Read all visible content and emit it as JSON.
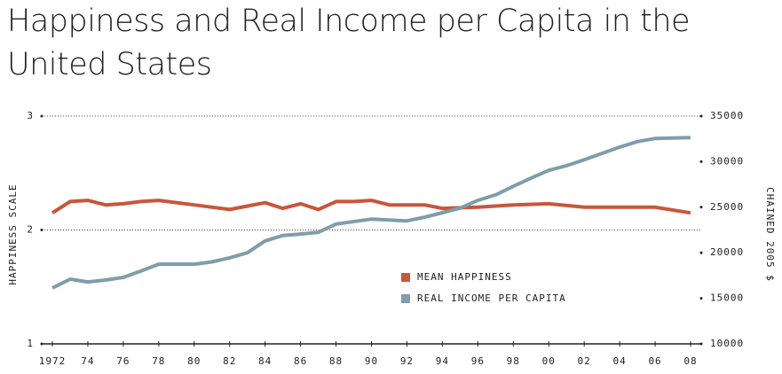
{
  "chart_data": {
    "type": "line",
    "title": "Happiness and Real Income per Capita in the United States",
    "ylabel": "HAPPINESS SCALE",
    "y2label": "CHAINED 2005 $",
    "xlim": [
      1971.4,
      2008.6
    ],
    "xticks": [
      1972,
      {
        "value": 1974,
        "label": "74"
      },
      {
        "value": 1976,
        "label": "76"
      },
      {
        "value": 1978,
        "label": "78"
      },
      {
        "value": 1980,
        "label": "80"
      },
      {
        "value": 1982,
        "label": "82"
      },
      {
        "value": 1984,
        "label": "84"
      },
      {
        "value": 1986,
        "label": "86"
      },
      {
        "value": 1988,
        "label": "88"
      },
      {
        "value": 1990,
        "label": "90"
      },
      {
        "value": 1992,
        "label": "92"
      },
      {
        "value": 1994,
        "label": "94"
      },
      {
        "value": 1996,
        "label": "96"
      },
      {
        "value": 1998,
        "label": "98"
      },
      {
        "value": 2000,
        "label": "00"
      },
      {
        "value": 2002,
        "label": "02"
      },
      {
        "value": 2004,
        "label": "04"
      },
      {
        "value": 2006,
        "label": "06"
      },
      {
        "value": 2008,
        "label": "08"
      }
    ],
    "ylim": [
      1,
      3
    ],
    "yticks": [
      1,
      2,
      3
    ],
    "y2lim": [
      10000,
      35000
    ],
    "y2ticks": [
      10000,
      15000,
      20000,
      25000,
      30000,
      35000
    ],
    "grid": true,
    "legend_position": "lower center",
    "series": [
      {
        "name": "MEAN HAPPINESS",
        "color": "#c9563b",
        "x": [
          1972,
          1973,
          1974,
          1975,
          1976,
          1977,
          1978,
          1980,
          1982,
          1983,
          1984,
          1985,
          1986,
          1987,
          1988,
          1989,
          1990,
          1991,
          1993,
          1994,
          1996,
          1998,
          2000,
          2002,
          2004,
          2006,
          2008
        ],
        "values": [
          2.15,
          2.25,
          2.26,
          2.22,
          2.23,
          2.25,
          2.26,
          2.22,
          2.18,
          2.21,
          2.24,
          2.19,
          2.23,
          2.18,
          2.25,
          2.25,
          2.26,
          2.22,
          2.22,
          2.19,
          2.2,
          2.22,
          2.23,
          2.2,
          2.2,
          2.2,
          2.15
        ]
      },
      {
        "name": "REAL INCOME PER CAPITA",
        "color": "#7f9daa",
        "axis": "y2",
        "x": [
          1972,
          1973,
          1974,
          1975,
          1976,
          1977,
          1978,
          1980,
          1981,
          1982,
          1983,
          1984,
          1985,
          1986,
          1987,
          1988,
          1990,
          1992,
          1993,
          1994,
          1995,
          1996,
          1997,
          1998,
          1999,
          2000,
          2001,
          2002,
          2003,
          2004,
          2005,
          2006,
          2008
        ],
        "values": [
          16130,
          17100,
          16800,
          17000,
          17300,
          18000,
          18750,
          18750,
          19000,
          19450,
          20000,
          21300,
          21900,
          22050,
          22250,
          23150,
          23700,
          23500,
          23900,
          24400,
          24900,
          25750,
          26350,
          27300,
          28200,
          29050,
          29550,
          30200,
          30900,
          31600,
          32200,
          32550,
          32650
        ]
      }
    ]
  }
}
